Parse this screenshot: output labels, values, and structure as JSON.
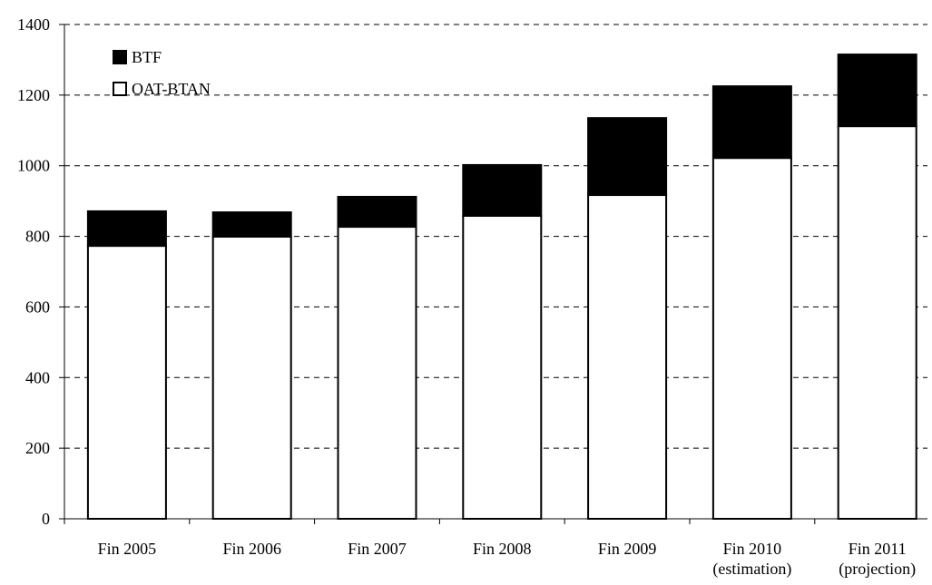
{
  "chart_data": {
    "type": "stacked_bar",
    "categories": [
      "Fin 2005",
      "Fin 2006",
      "Fin 2007",
      "Fin 2008",
      "Fin 2009",
      "Fin 2010\n(estimation)",
      "Fin 2011\n(projection)"
    ],
    "series": [
      {
        "name": "OAT-BTAN",
        "color": "#ffffff",
        "values": [
          773,
          799,
          827,
          858,
          917,
          1022,
          1112
        ]
      },
      {
        "name": "BTF",
        "color": "#000000",
        "values": [
          98,
          69,
          85,
          144,
          218,
          203,
          203
        ]
      }
    ],
    "ylim": [
      0,
      1400
    ],
    "yticks": [
      0,
      200,
      400,
      600,
      800,
      1000,
      1200,
      1400
    ],
    "grid": true,
    "legend": "top-left"
  }
}
